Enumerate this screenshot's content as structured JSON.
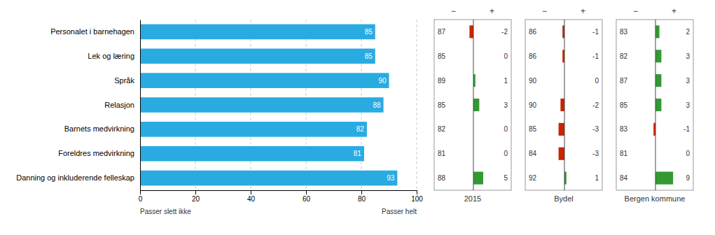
{
  "chart_data": [
    {
      "type": "bar",
      "orientation": "horizontal",
      "categories": [
        "Personalet i barnehagen",
        "Lek og læring",
        "Språk",
        "Relasjon",
        "Barnets medvirkning",
        "Foreldres medvirkning",
        "Danning og inkluderende felleskap"
      ],
      "values": [
        85,
        85,
        90,
        88,
        82,
        81,
        93
      ],
      "color": "#29ABE2",
      "data_labels": true,
      "xlim": [
        0,
        100
      ],
      "xticks": [
        0,
        20,
        40,
        60,
        80,
        100
      ],
      "grid": true,
      "annotations": [
        "Passer slett ikke",
        "Passer helt"
      ]
    },
    {
      "type": "bar",
      "orientation": "horizontal",
      "xlabel": "2015",
      "values": [
        -2,
        0,
        1,
        3,
        0,
        0,
        5
      ],
      "scores": [
        87,
        85,
        89,
        85,
        82,
        81,
        88
      ],
      "colors": [
        "#CC2200",
        "#ffffff",
        "#339933",
        "#339933",
        "#ffffff",
        "#ffffff",
        "#339933"
      ],
      "data_labels": true,
      "xlim": [
        -10,
        10
      ],
      "tick_labels": false,
      "annotations": [
        "−",
        "+"
      ]
    },
    {
      "type": "bar",
      "orientation": "horizontal",
      "xlabel": "Bydel",
      "values": [
        -1,
        -1,
        0,
        -2,
        -3,
        -3,
        1
      ],
      "scores": [
        86,
        86,
        90,
        90,
        85,
        84,
        92
      ],
      "colors": [
        "#CC2200",
        "#CC2200",
        "#ffffff",
        "#CC2200",
        "#CC2200",
        "#CC2200",
        "#339933"
      ],
      "data_labels": true,
      "xlim": [
        -10,
        10
      ],
      "tick_labels": false,
      "annotations": [
        "−",
        "+"
      ]
    },
    {
      "type": "bar",
      "orientation": "horizontal",
      "xlabel": "Bergen kommune",
      "values": [
        2,
        3,
        3,
        3,
        -1,
        0,
        9
      ],
      "scores": [
        83,
        82,
        87,
        85,
        83,
        81,
        84
      ],
      "colors": [
        "#339933",
        "#339933",
        "#339933",
        "#339933",
        "#CC2200",
        "#ffffff",
        "#339933"
      ],
      "data_labels": true,
      "xlim": [
        -10,
        10
      ],
      "tick_labels": false,
      "annotations": [
        "−",
        "+"
      ]
    }
  ]
}
